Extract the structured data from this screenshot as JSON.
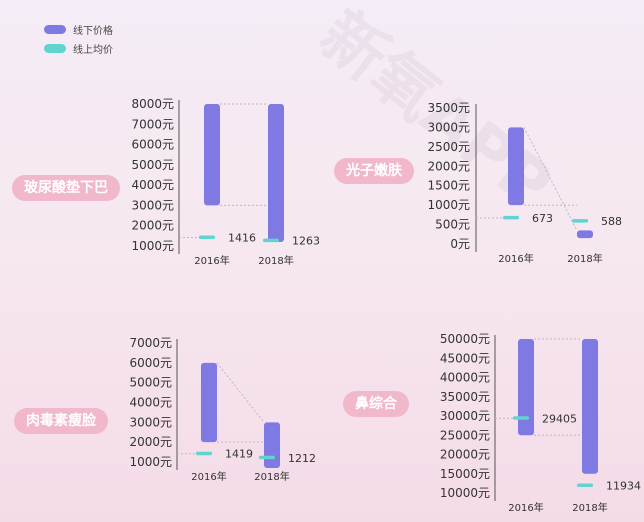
{
  "legend": {
    "offline": {
      "label": "线下价格",
      "color": "#7f7ae3"
    },
    "online": {
      "label": "线上均价",
      "color": "#62d4cf"
    }
  },
  "watermark_text": "新氧APP",
  "chart_data": [
    {
      "type": "bar",
      "procedure": "玻尿酸垫下巴",
      "categories": [
        "2016年",
        "2018年"
      ],
      "series": [
        {
          "name": "线下价格",
          "ranges": [
            [
              3000,
              8000
            ],
            [
              1200,
              8000
            ]
          ]
        },
        {
          "name": "线上均价",
          "values": [
            1416,
            1263
          ]
        }
      ],
      "yticks": [
        "8000元",
        "7000元",
        "6000元",
        "5000元",
        "4000元",
        "3000元",
        "2000元",
        "1000元"
      ],
      "ylim": [
        1000,
        8000
      ]
    },
    {
      "type": "bar",
      "procedure": "光子嫩肤",
      "categories": [
        "2016年",
        "2018年"
      ],
      "series": [
        {
          "name": "线下价格",
          "ranges": [
            [
              1000,
              3000
            ],
            [
              150,
              350
            ]
          ]
        },
        {
          "name": "线上均价",
          "values": [
            673,
            588
          ]
        }
      ],
      "yticks": [
        "3500元",
        "3000元",
        "2500元",
        "2000元",
        "1500元",
        "1000元",
        "500元",
        "0元"
      ],
      "ylim": [
        0,
        3500
      ]
    },
    {
      "type": "bar",
      "procedure": "肉毒素瘦脸",
      "categories": [
        "2016年",
        "2018年"
      ],
      "series": [
        {
          "name": "线下价格",
          "ranges": [
            [
              2000,
              6000
            ],
            [
              700,
              3000
            ]
          ]
        },
        {
          "name": "线上均价",
          "values": [
            1419,
            1212
          ]
        }
      ],
      "yticks": [
        "7000元",
        "6000元",
        "5000元",
        "4000元",
        "3000元",
        "2000元",
        "1000元"
      ],
      "ylim": [
        1000,
        7000
      ]
    },
    {
      "type": "bar",
      "procedure": "鼻综合",
      "categories": [
        "2016年",
        "2018年"
      ],
      "series": [
        {
          "name": "线下价格",
          "ranges": [
            [
              25000,
              50000
            ],
            [
              15000,
              50000
            ]
          ]
        },
        {
          "name": "线上均价",
          "values": [
            29405,
            11934
          ]
        }
      ],
      "yticks": [
        "50000元",
        "45000元",
        "40000元",
        "35000元",
        "30000元",
        "25000元",
        "20000元",
        "15000元",
        "10000元"
      ],
      "ylim": [
        10000,
        50000
      ]
    }
  ]
}
